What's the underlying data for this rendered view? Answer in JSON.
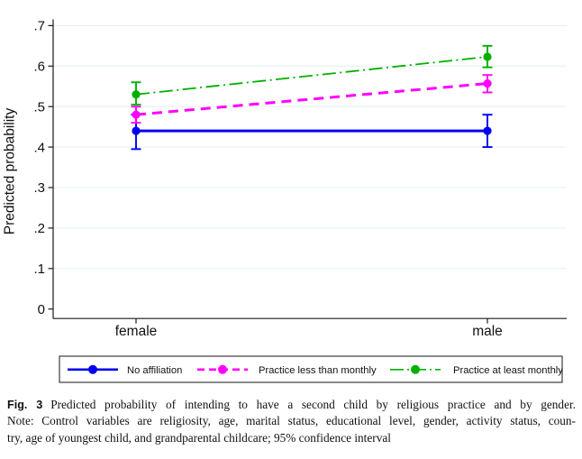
{
  "chart_data": {
    "type": "line",
    "categories": [
      "female",
      "male"
    ],
    "series": [
      {
        "name": "No affiliation",
        "color": "#0000ee",
        "dash": "solid",
        "values": [
          0.44,
          0.44
        ],
        "ci_low": [
          0.395,
          0.4
        ],
        "ci_high": [
          0.48,
          0.48
        ]
      },
      {
        "name": "Practice less than monthly",
        "color": "#ff00ff",
        "dash": "dashed",
        "values": [
          0.48,
          0.557
        ],
        "ci_low": [
          0.46,
          0.535
        ],
        "ci_high": [
          0.5,
          0.578
        ]
      },
      {
        "name": "Practice at least monthly",
        "color": "#00b000",
        "dash": "dash-dot",
        "values": [
          0.53,
          0.623
        ],
        "ci_low": [
          0.505,
          0.597
        ],
        "ci_high": [
          0.56,
          0.65
        ]
      }
    ],
    "title": "",
    "xlabel": "",
    "ylabel": "Predicted probability",
    "ylim": [
      0,
      0.7
    ],
    "yticks": [
      0,
      0.1,
      0.2,
      0.3,
      0.4,
      0.5,
      0.6,
      0.7
    ],
    "ytick_labels": [
      "0",
      ".1",
      ".2",
      ".3",
      ".4",
      ".5",
      ".6",
      ".7"
    ],
    "grid": true,
    "legend_position": "bottom",
    "error_bars": "95% confidence interval",
    "grid_color": "#e7f0f2",
    "axis_color": "#1a1a1a"
  },
  "caption": {
    "label": "Fig. 3",
    "lines": [
      "Predicted probability of intending to have a second child by religious practice and by gender.",
      "Note: Control variables are religiosity, age, marital status, educational level, gender, activity status, coun-",
      "try, age of youngest child, and grandparental childcare; 95% confidence interval"
    ]
  }
}
